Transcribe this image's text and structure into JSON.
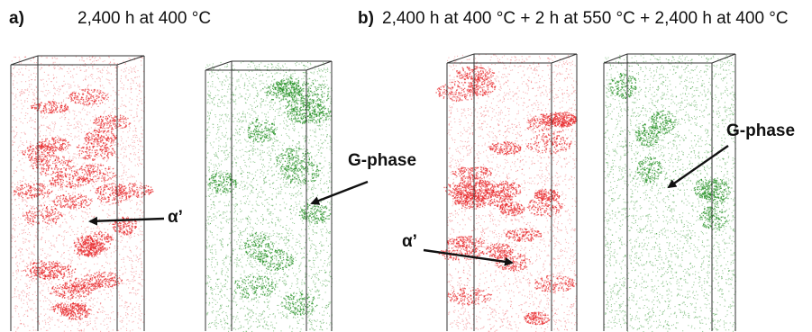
{
  "panels": [
    {
      "letter": "a)",
      "condition": "2,400 h at 400 °C",
      "callouts": {
        "alpha": "α’",
        "gphase": "G-phase"
      }
    },
    {
      "letter": "b)",
      "condition": "2,400 h at 400 °C + 2 h at 550 °C + 2,400 h at 400 °C",
      "callouts": {
        "alpha": "α’",
        "gphase": "G-phase"
      }
    }
  ],
  "colors": {
    "alpha_atoms": "#e8262a",
    "gphase_atoms": "#1f8f1f",
    "frame": "#333333",
    "text": "#111111"
  }
}
